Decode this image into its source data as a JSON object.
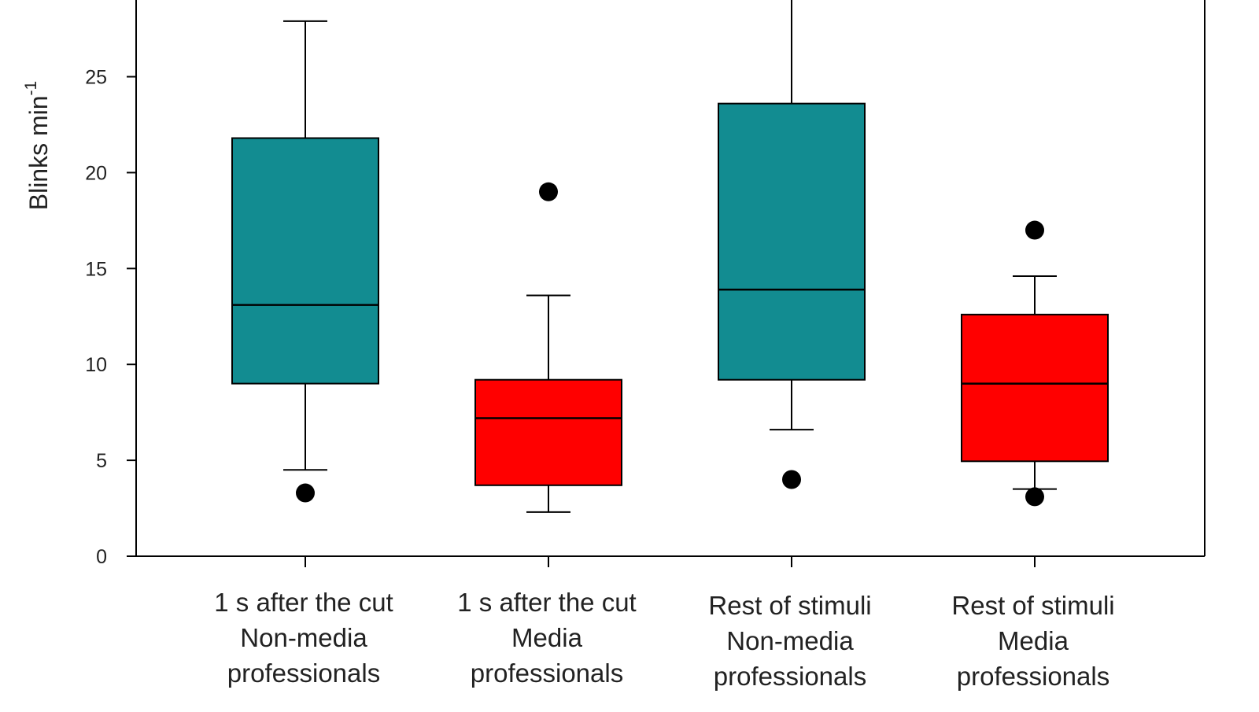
{
  "chart_data": {
    "type": "box",
    "title": "",
    "xlabel": "",
    "ylabel": "Blinks min",
    "ylabel_superscript": "-1",
    "ylim": [
      0,
      29
    ],
    "yticks": [
      "0",
      "5",
      "10",
      "15",
      "20",
      "25"
    ],
    "grid": false,
    "legend": "none",
    "colors": {
      "non_media": "#128c91",
      "media": "#ff0000",
      "line": "#000000"
    },
    "categories": [
      {
        "lines": [
          "1 s after the cut",
          "Non-media",
          "professionals"
        ],
        "group": "non_media",
        "whisker_low": 4.5,
        "q1": 9.0,
        "median": 13.1,
        "q3": 21.8,
        "whisker_high": 27.9,
        "outliers": [
          3.3
        ]
      },
      {
        "lines": [
          "1 s after the cut",
          "Media",
          "professionals"
        ],
        "group": "media",
        "whisker_low": 2.3,
        "q1": 3.7,
        "median": 7.2,
        "q3": 9.2,
        "whisker_high": 13.6,
        "outliers": [
          19.0
        ]
      },
      {
        "lines": [
          "Rest of stimuli",
          "Non-media",
          "professionals"
        ],
        "group": "non_media",
        "whisker_low": 6.6,
        "q1": 9.2,
        "median": 13.9,
        "q3": 23.6,
        "whisker_high": 29.0,
        "outliers": [
          4.0
        ]
      },
      {
        "lines": [
          "Rest of stimuli",
          "Media",
          "professionals"
        ],
        "group": "media",
        "whisker_low": 3.5,
        "q1": 4.95,
        "median": 9.0,
        "q3": 12.6,
        "whisker_high": 14.6,
        "outliers": [
          17.0,
          3.1
        ]
      }
    ]
  }
}
